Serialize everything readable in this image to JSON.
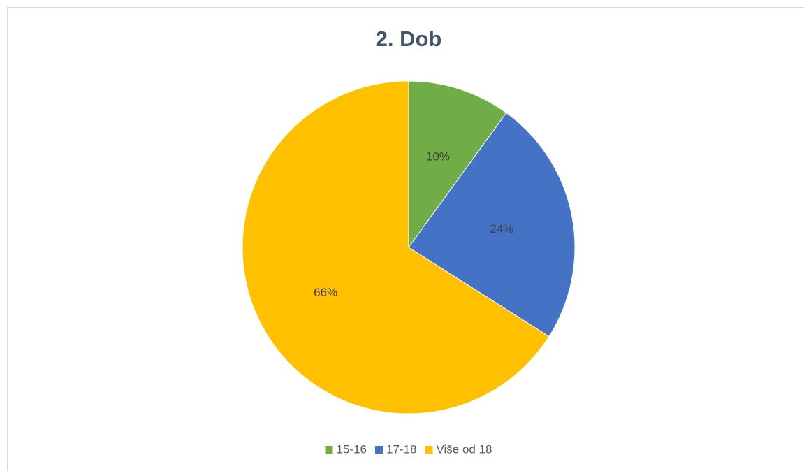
{
  "chart_data": {
    "type": "pie",
    "title": "2. Dob",
    "categories": [
      "15-16",
      "17-18",
      "Više od 18"
    ],
    "values": [
      10,
      24,
      66
    ],
    "value_labels": [
      "10%",
      "24%",
      "66%"
    ],
    "colors": [
      "#70ad47",
      "#4472c4",
      "#ffc000"
    ],
    "legend": "bottom"
  }
}
